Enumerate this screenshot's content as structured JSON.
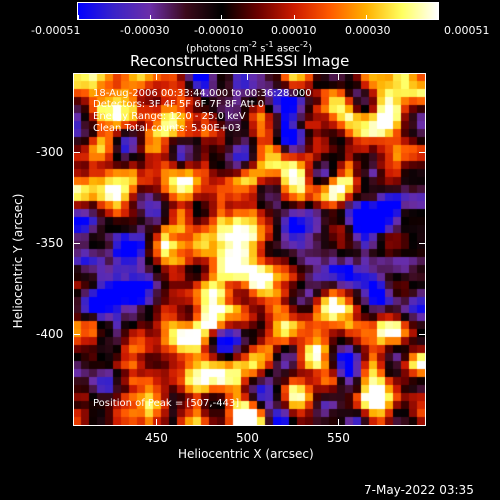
{
  "colorbar": {
    "ticks": [
      "-0.00051",
      "-0.00030",
      "-0.00010",
      "0.00010",
      "0.00030",
      "0.00051"
    ],
    "units_html": "(photons cm<sup>-2</sup> s<sup>-1</sup> asec<sup>-2</sup>)",
    "palette": [
      "#0000ff",
      "#3a23c8",
      "#6b2ea8",
      "#3b0a1a",
      "#000000",
      "#6a0000",
      "#cc1a00",
      "#ff5a00",
      "#ffb000",
      "#ffff60",
      "#ffffff"
    ]
  },
  "title": "Reconstructed RHESSI Image",
  "annotations": {
    "line1": "18-Aug-2006 00:33:44.000 to 00:36:28.000",
    "line2": "Detectors: 3F 4F 5F 6F 7F 8F  Att 0",
    "line3": "Energy Range: 12.0 - 25.0 keV",
    "line4": "Clean    Total counts: 5.90E+03",
    "peak": "Position of Peak = [507,-443]"
  },
  "axes": {
    "x_label": "Heliocentric X (arcsec)",
    "y_label": "Heliocentric Y (arcsec)",
    "x_ticks": [
      "450",
      "500",
      "550"
    ],
    "y_ticks": [
      "-300",
      "-350",
      "-400"
    ]
  },
  "timestamp": "7-May-2022 03:35"
}
